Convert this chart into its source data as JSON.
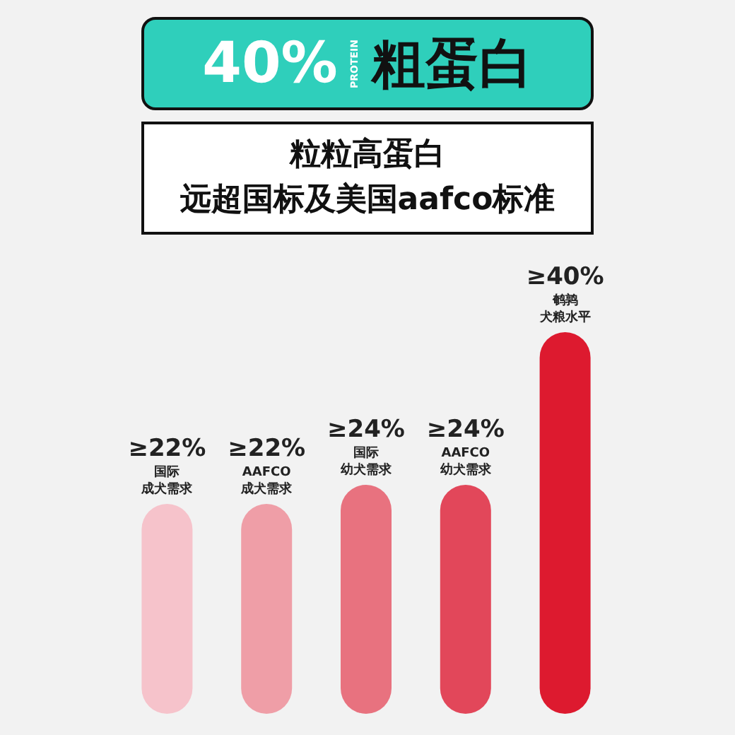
{
  "chart_data": {
    "type": "bar",
    "title": "粗蛋白",
    "subtitle": "粒粒高蛋白",
    "annotations": [
      "40%",
      "PROTEIN",
      "远超国标及美国aafco标准"
    ],
    "categories": [
      "国际成犬需求",
      "AAFCO成犬需求",
      "国际幼犬需求",
      "AAFCO幼犬需求",
      "鹌鹑犬粮水平"
    ],
    "values": [
      22,
      22,
      24,
      24,
      40
    ],
    "value_labels": [
      "≥22%",
      "≥22%",
      "≥24%",
      "≥24%",
      "≥40%"
    ],
    "colors": [
      "#f6c3cb",
      "#ef9ea7",
      "#e8727f",
      "#e2475a",
      "#dd1a2f"
    ]
  }
}
